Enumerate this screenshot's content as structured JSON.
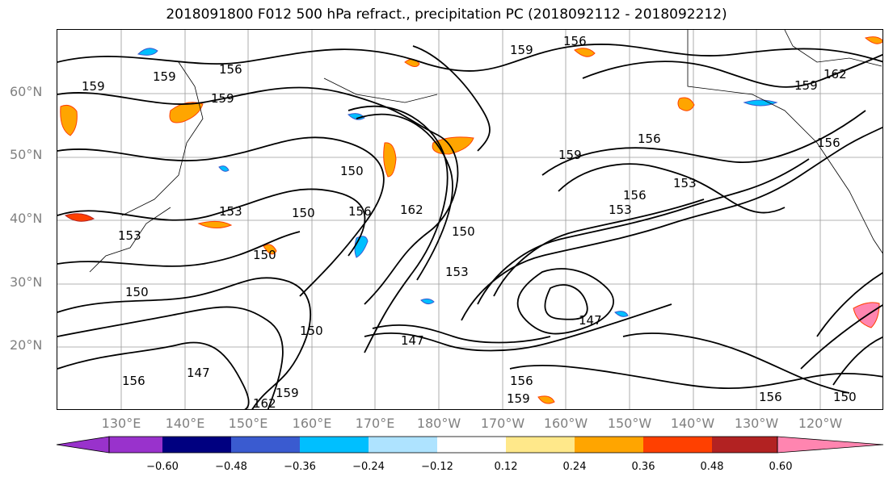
{
  "title": "2018091800 F012 500 hPa refract., precipitation PC (2018092112 - 2018092212)",
  "lat_labels": [
    "60°N",
    "50°N",
    "40°N",
    "30°N",
    "20°N"
  ],
  "lon_labels": [
    "130°E",
    "140°E",
    "150°E",
    "160°E",
    "170°E",
    "180°W",
    "170°W",
    "160°W",
    "150°W",
    "140°W",
    "130°W",
    "120°W"
  ],
  "colorbar": {
    "colors": [
      "#9932cc",
      "#000080",
      "#3a5bd0",
      "#00bfff",
      "#aee3ff",
      "#ffffff",
      "#ffe88a",
      "#ffa500",
      "#ff4000",
      "#b22222",
      "#ff85b0"
    ],
    "tick_labels": [
      "−0.60",
      "−0.48",
      "−0.36",
      "−0.24",
      "−0.12",
      "0.12",
      "0.24",
      "0.36",
      "0.48",
      "0.60"
    ]
  },
  "contour_labels": [
    "156",
    "159",
    "159",
    "159",
    "159",
    "162",
    "156",
    "150",
    "153",
    "150",
    "156",
    "162",
    "150",
    "147",
    "150",
    "150",
    "153",
    "153",
    "156",
    "159",
    "156",
    "153",
    "147",
    "156",
    "159",
    "162",
    "159",
    "156",
    "150",
    "147",
    "153",
    "156",
    "150",
    "156",
    "159"
  ]
}
